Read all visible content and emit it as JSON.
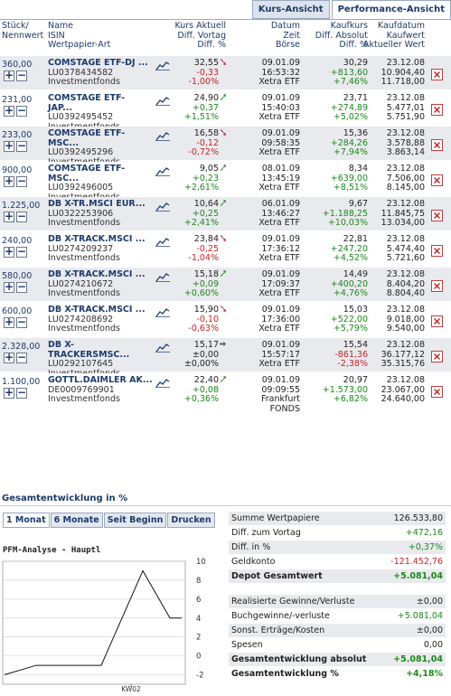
{
  "top_tabs": [
    "Kurs-Ansicht",
    "Performance-Ansicht"
  ],
  "header": {
    "qty": [
      "Stück/",
      "Nennwert"
    ],
    "name": [
      "Name",
      "ISIN",
      "Wertpapier-Art"
    ],
    "kurs": [
      "Kurs Aktuell",
      "Diff. Vortag",
      "Diff. %"
    ],
    "datum": [
      "Datum",
      "Zeit",
      "Börse"
    ],
    "kauf": [
      "Kaufkurs",
      "Diff. Absolut",
      "Diff. %"
    ],
    "kaufdatum": [
      "Kaufdatum",
      "Kaufwert",
      "Aktueller Wert"
    ]
  },
  "rows": [
    {
      "qty": "360,00",
      "name": "COMSTAGE ETF-DJ ...",
      "isin": "LU0378434582",
      "art": "Investmentfonds",
      "kurs": "32,55",
      "arrow": "down",
      "diff": "-0,33",
      "diffpct": "-1,00%",
      "datum": "09.01.09",
      "zeit": "16:53:32",
      "boerse": "Xetra ETF",
      "kaufkurs": "30,29",
      "diffabs": "+813,60",
      "kdiffpct": "+7,46%",
      "kaufdatum": "23.12.08",
      "kaufwert": "10.904,40",
      "aktwert": "11.718,00"
    },
    {
      "qty": "231,00",
      "name": "COMSTAGE ETF-",
      "name2": "JAP...",
      "isin": "LU0392495452",
      "art": "Investmentfonds",
      "kurs": "24,90",
      "arrow": "up",
      "diff": "+0,37",
      "diffpct": "+1,51%",
      "datum": "09.01.09",
      "zeit": "15:40:03",
      "boerse": "Xetra ETF",
      "kaufkurs": "23,71",
      "diffabs": "+274,89",
      "kdiffpct": "+5,02%",
      "kaufdatum": "23.12.08",
      "kaufwert": "5.477,01",
      "aktwert": "5.751,90"
    },
    {
      "qty": "233,00",
      "name": "COMSTAGE ETF-",
      "name2": "MSC...",
      "isin": "LU0392495296",
      "art": "Investmentfonds",
      "kurs": "16,58",
      "arrow": "down",
      "diff": "-0,12",
      "diffpct": "-0,72%",
      "datum": "09.01.09",
      "zeit": "09:58:35",
      "boerse": "Xetra ETF",
      "kaufkurs": "15,36",
      "diffabs": "+284,26",
      "kdiffpct": "+7,94%",
      "kaufdatum": "23.12.08",
      "kaufwert": "3.578,88",
      "aktwert": "3.863,14"
    },
    {
      "qty": "900,00",
      "name": "COMSTAGE ETF-",
      "name2": "MSC...",
      "isin": "LU0392496005",
      "art": "Investmentfonds",
      "kurs": "9,05",
      "arrow": "up",
      "diff": "+0,23",
      "diffpct": "+2,61%",
      "datum": "08.01.09",
      "zeit": "13:45:19",
      "boerse": "Xetra ETF",
      "kaufkurs": "8,34",
      "diffabs": "+639,00",
      "kdiffpct": "+8,51%",
      "kaufdatum": "23.12.08",
      "kaufwert": "7.506,00",
      "aktwert": "8.145,00"
    },
    {
      "qty": "1.225,00",
      "name": "DB X-TR.MSCI EUR...",
      "isin": "LU0322253906",
      "art": "Investmentfonds",
      "kurs": "10,64",
      "arrow": "up",
      "diff": "+0,25",
      "diffpct": "+2,41%",
      "datum": "06.01.09",
      "zeit": "13:46:27",
      "boerse": "Xetra ETF",
      "kaufkurs": "9,67",
      "diffabs": "+1.188,25",
      "kdiffpct": "+10,03%",
      "kaufdatum": "23.12.08",
      "kaufwert": "11.845,75",
      "aktwert": "13.034,00"
    },
    {
      "qty": "240,00",
      "name": "DB X-TRACK.MSCI ...",
      "isin": "LU0274209237",
      "art": "Investmentfonds",
      "kurs": "23,84",
      "arrow": "down",
      "diff": "-0,25",
      "diffpct": "-1,04%",
      "datum": "09.01.09",
      "zeit": "17:36:12",
      "boerse": "Xetra ETF",
      "kaufkurs": "22,81",
      "diffabs": "+247,20",
      "kdiffpct": "+4,52%",
      "kaufdatum": "23.12.08",
      "kaufwert": "5.474,40",
      "aktwert": "5.721,60"
    },
    {
      "qty": "580,00",
      "name": "DB X-TRACK.MSCI ...",
      "isin": "LU0274210672",
      "art": "Investmentfonds",
      "kurs": "15,18",
      "arrow": "up",
      "diff": "+0,09",
      "diffpct": "+0,60%",
      "datum": "09.01.09",
      "zeit": "17:09:37",
      "boerse": "Xetra ETF",
      "kaufkurs": "14,49",
      "diffabs": "+400,20",
      "kdiffpct": "+4,76%",
      "kaufdatum": "23.12.08",
      "kaufwert": "8.404,20",
      "aktwert": "8.804,40"
    },
    {
      "qty": "600,00",
      "name": "DB X-TRACK.MSCI ...",
      "isin": "LU0274208692",
      "art": "Investmentfonds",
      "kurs": "15,90",
      "arrow": "down",
      "diff": "-0,10",
      "diffpct": "-0,63%",
      "datum": "09.01.09",
      "zeit": "17:36:00",
      "boerse": "Xetra ETF",
      "kaufkurs": "15,03",
      "diffabs": "+522,00",
      "kdiffpct": "+5,79%",
      "kaufdatum": "23.12.08",
      "kaufwert": "9.018,00",
      "aktwert": "9.540,00"
    },
    {
      "qty": "2.328,00",
      "name": "DB X-",
      "name2": "TRACKERSMSC...",
      "isin": "LU0292107645",
      "art": "Investmentfonds",
      "kurs": "15,17",
      "arrow": "flat",
      "diff": "±0,00",
      "diffpct": "±0,00%",
      "datum": "09.01.09",
      "zeit": "15:57:17",
      "boerse": "Xetra ETF",
      "kaufkurs": "15,54",
      "diffabs": "-861,36",
      "kdiffpct": "-2,38%",
      "kaufdatum": "23.12.08",
      "kaufwert": "36.177,12",
      "aktwert": "35.315,76"
    },
    {
      "qty": "1.100,00",
      "name": "GOTTL.DAIMLER AK...",
      "isin": "DE0009769901",
      "art": "Investmentfonds",
      "kurs": "22,40",
      "arrow": "up",
      "diff": "+0,08",
      "diffpct": "+0,36%",
      "datum": "09.01.09",
      "zeit": "09:09:55",
      "boerse": "Frankfurt",
      "boerse2": "FONDS",
      "kaufkurs": "20,97",
      "diffabs": "+1.573,00",
      "kdiffpct": "+6,82%",
      "kaufdatum": "23.12.08",
      "kaufwert": "23.067,00",
      "aktwert": "24.640,00"
    }
  ],
  "gesamt": {
    "title": "Gesamtentwicklung in %",
    "tabs": [
      "1 Monat",
      "6 Monate",
      "Seit Beginn",
      "Drucken"
    ],
    "chart_title": "PFM-Analyse - Hauptl"
  },
  "chart_data": {
    "type": "line",
    "title": "PFM-Analyse - Hauptl",
    "x_tick_labels": [
      "KW02"
    ],
    "y_ticks": [
      -2,
      0,
      2,
      4,
      6,
      8,
      10
    ],
    "ylim": [
      -3,
      10
    ],
    "series": [
      {
        "values": [
          -2,
          -1,
          -1,
          -1,
          -1,
          9,
          4,
          4
        ]
      }
    ],
    "grid": true
  },
  "summary": [
    {
      "label": "Summe Wertpapiere",
      "value": "126.533,80",
      "cls": "neu",
      "bg": true
    },
    {
      "label": "Diff. zum Vortag",
      "value": "+472,16",
      "cls": "pos"
    },
    {
      "label": "Diff. in %",
      "value": "+0,37%",
      "cls": "pos",
      "bg": true
    },
    {
      "label": "Geldkonto",
      "value": "-121.452,76",
      "cls": "neg"
    },
    {
      "label": "Depot Gesamtwert",
      "value": "+5.081,04",
      "cls": "pos",
      "bg": true,
      "bold": true
    },
    {
      "gap": true
    },
    {
      "label": "Realisierte Gewinne/Verluste",
      "value": "±0,00",
      "cls": "neu",
      "bg": true
    },
    {
      "label": "Buchgewinne/-verluste",
      "value": "+5.081,04",
      "cls": "pos"
    },
    {
      "label": "Sonst. Erträge/Kosten",
      "value": "±0,00",
      "cls": "neu",
      "bg": true
    },
    {
      "label": "Spesen",
      "value": "0,00",
      "cls": "neu"
    },
    {
      "label": "Gesamtentwicklung absolut",
      "value": "+5.081,04",
      "cls": "pos",
      "bg": true,
      "bold": true
    },
    {
      "label": "Gesamtentwicklung %",
      "value": "+4,18%",
      "cls": "pos",
      "bold": true
    }
  ],
  "colors": {
    "accent": "#1d3b6b",
    "positive": "#1a8a1a",
    "negative": "#d02020",
    "row_bg": "#e9eaee"
  }
}
